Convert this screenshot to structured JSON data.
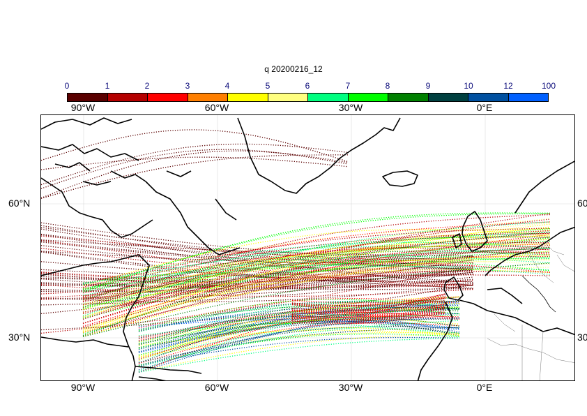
{
  "title": "q 20200216_12",
  "colorbar": {
    "ticks": [
      "0",
      "1",
      "2",
      "3",
      "4",
      "5",
      "6",
      "7",
      "8",
      "9",
      "10",
      "12",
      "100"
    ],
    "colors": [
      "#5a0000",
      "#b40000",
      "#ff0000",
      "#ff7f00",
      "#ffff00",
      "#ffff80",
      "#00ff80",
      "#00ff00",
      "#008000",
      "#004040",
      "#0050a0",
      "#0060ff"
    ]
  },
  "lon_labels": [
    "90°W",
    "60°W",
    "30°W",
    "0°E"
  ],
  "lat_labels": {
    "left": [
      "60°N",
      "30°N"
    ],
    "right": [
      "60",
      "30"
    ]
  }
}
